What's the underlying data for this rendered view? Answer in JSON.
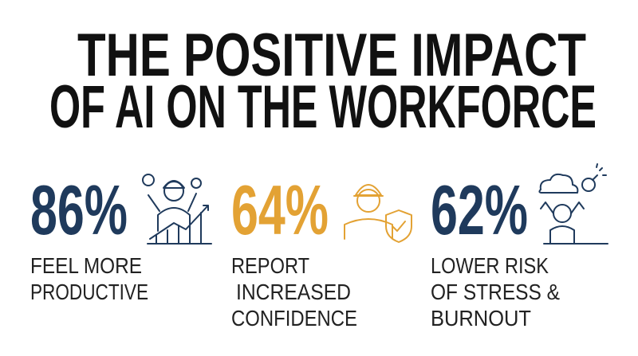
{
  "title_lines": [
    "THE POSITIVE IMPACT",
    "OF AI ON THE WORKFORCE"
  ],
  "stats": [
    {
      "value": "86%",
      "label_lines": [
        "FEEL MORE",
        "PRODUCTIVE"
      ]
    },
    {
      "value": "64%",
      "label_lines": [
        "REPORT",
        "INCREASED",
        "CONFIDENCE"
      ]
    },
    {
      "value": "62%",
      "label_lines": [
        "LOWER RISK",
        "OF STRESS &",
        "BURNOUT"
      ]
    }
  ]
}
